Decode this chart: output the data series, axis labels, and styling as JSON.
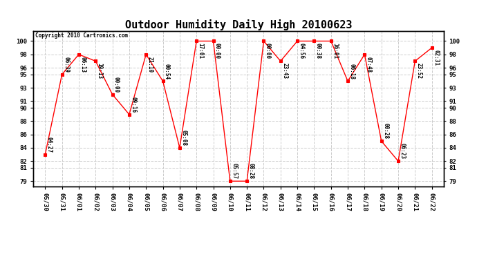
{
  "title": "Outdoor Humidity Daily High 20100623",
  "copyright": "Copyright 2010 Cartronics.com",
  "x_labels": [
    "05/30",
    "05/31",
    "06/01",
    "06/02",
    "06/03",
    "06/04",
    "06/05",
    "06/06",
    "06/07",
    "06/08",
    "06/09",
    "06/10",
    "06/11",
    "06/12",
    "06/13",
    "06/14",
    "06/15",
    "06/16",
    "06/17",
    "06/18",
    "06/19",
    "06/20",
    "06/21",
    "06/22"
  ],
  "y_values": [
    83,
    95,
    98,
    97,
    92,
    89,
    98,
    94,
    84,
    100,
    100,
    79,
    79,
    100,
    97,
    100,
    100,
    100,
    94,
    98,
    85,
    82,
    97,
    99
  ],
  "point_labels": [
    "04:27",
    "06:39",
    "06:13",
    "19:13",
    "00:00",
    "09:16",
    "21:10",
    "00:54",
    "05:08",
    "17:01",
    "00:00",
    "05:57",
    "08:28",
    "00:00",
    "23:43",
    "04:56",
    "00:38",
    "16:01",
    "06:18",
    "07:48",
    "00:28",
    "06:23",
    "23:52",
    "02:31"
  ],
  "ylim_min": 79,
  "ylim_max": 100,
  "yticks": [
    79,
    81,
    82,
    84,
    86,
    88,
    90,
    91,
    93,
    95,
    96,
    98,
    100
  ],
  "line_color": "red",
  "marker_color": "red",
  "bg_color": "white",
  "grid_color": "#cccccc",
  "title_fontsize": 11,
  "annot_fontsize": 5.5,
  "tick_fontsize": 6.5
}
